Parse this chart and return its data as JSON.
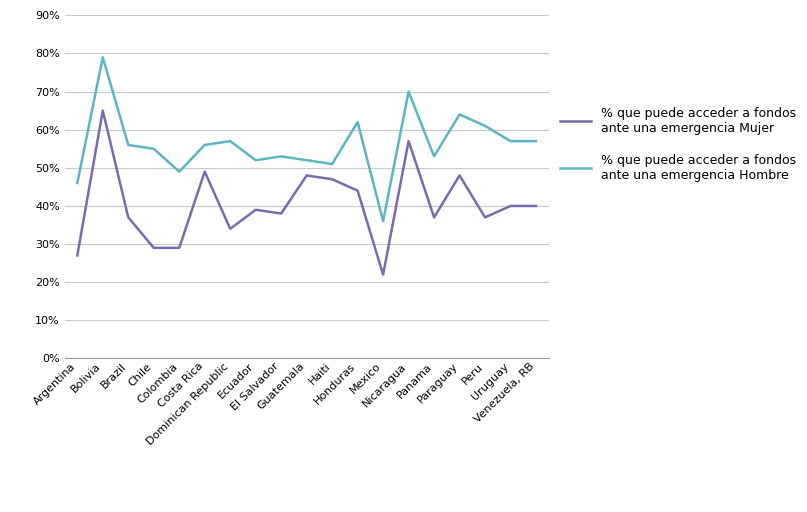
{
  "categories": [
    "Argentina",
    "Bolivia",
    "Brazil",
    "Chile",
    "Colombia",
    "Costa Rica",
    "Dominican Republic",
    "Ecuador",
    "El Salvador",
    "Guatemala",
    "Haiti",
    "Honduras",
    "Mexico",
    "Nicaragua",
    "Panama",
    "Paraguay",
    "Peru",
    "Uruguay",
    "Venezuela, RB"
  ],
  "mujer": [
    27,
    65,
    37,
    29,
    29,
    49,
    34,
    39,
    38,
    48,
    47,
    44,
    22,
    57,
    37,
    48,
    37,
    40,
    40
  ],
  "hombre": [
    46,
    79,
    56,
    55,
    49,
    56,
    57,
    52,
    53,
    52,
    51,
    62,
    36,
    70,
    53,
    64,
    61,
    57,
    57
  ],
  "mujer_color": "#7b6bac",
  "hombre_color": "#5db5c4",
  "mujer_label": "% que puede acceder a fondos\nante una emergencia Mujer",
  "hombre_label": "% que puede acceder a fondos\nante una emergencia Hombre",
  "ylim_min": 0,
  "ylim_max": 90,
  "yticks": [
    0,
    10,
    20,
    30,
    40,
    50,
    60,
    70,
    80,
    90
  ],
  "background_color": "#ffffff",
  "line_width": 1.8,
  "grid_color": "#c8c8c8",
  "spine_color": "#999999",
  "tick_label_fontsize": 8,
  "legend_fontsize": 9
}
